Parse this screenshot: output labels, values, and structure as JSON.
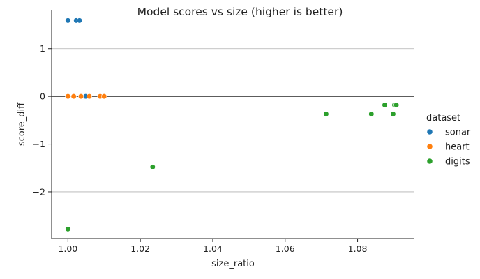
{
  "chart_data": {
    "type": "scatter",
    "title": "Model scores vs size (higher is better)",
    "xlabel": "size_ratio",
    "ylabel": "score_diff",
    "xlim": [
      0.9955,
      1.0955
    ],
    "ylim": [
      -2.98,
      1.8
    ],
    "xticks": [
      1.0,
      1.02,
      1.04,
      1.06,
      1.08
    ],
    "xtick_labels": [
      "1.00",
      "1.02",
      "1.04",
      "1.06",
      "1.08"
    ],
    "yticks": [
      1,
      0,
      -1,
      -2
    ],
    "ytick_labels": [
      "1",
      "0",
      "−1",
      "−2"
    ],
    "grid": "y",
    "reference_line_y": 0,
    "legend": {
      "title": "dataset",
      "placement": "right"
    },
    "series": [
      {
        "name": "sonar",
        "color": "#1f77b4",
        "points": [
          {
            "x": 1.0,
            "y": 1.59
          },
          {
            "x": 1.0023,
            "y": 1.59
          },
          {
            "x": 1.0032,
            "y": 1.59
          },
          {
            "x": 1.0049,
            "y": 0.0
          }
        ]
      },
      {
        "name": "heart",
        "color": "#ff7f0e",
        "points": [
          {
            "x": 1.0,
            "y": 0.0
          },
          {
            "x": 1.0016,
            "y": 0.0
          },
          {
            "x": 1.0036,
            "y": 0.0
          },
          {
            "x": 1.0059,
            "y": 0.0
          },
          {
            "x": 1.0089,
            "y": 0.0
          },
          {
            "x": 1.01,
            "y": 0.0
          }
        ]
      },
      {
        "name": "digits",
        "color": "#2ca02c",
        "points": [
          {
            "x": 1.0,
            "y": -2.78
          },
          {
            "x": 1.0234,
            "y": -1.48
          },
          {
            "x": 1.0713,
            "y": -0.37
          },
          {
            "x": 1.0838,
            "y": -0.37
          },
          {
            "x": 1.0875,
            "y": -0.18
          },
          {
            "x": 1.0898,
            "y": -0.37
          },
          {
            "x": 1.0902,
            "y": -0.18
          },
          {
            "x": 1.0907,
            "y": -0.18
          }
        ]
      }
    ]
  }
}
